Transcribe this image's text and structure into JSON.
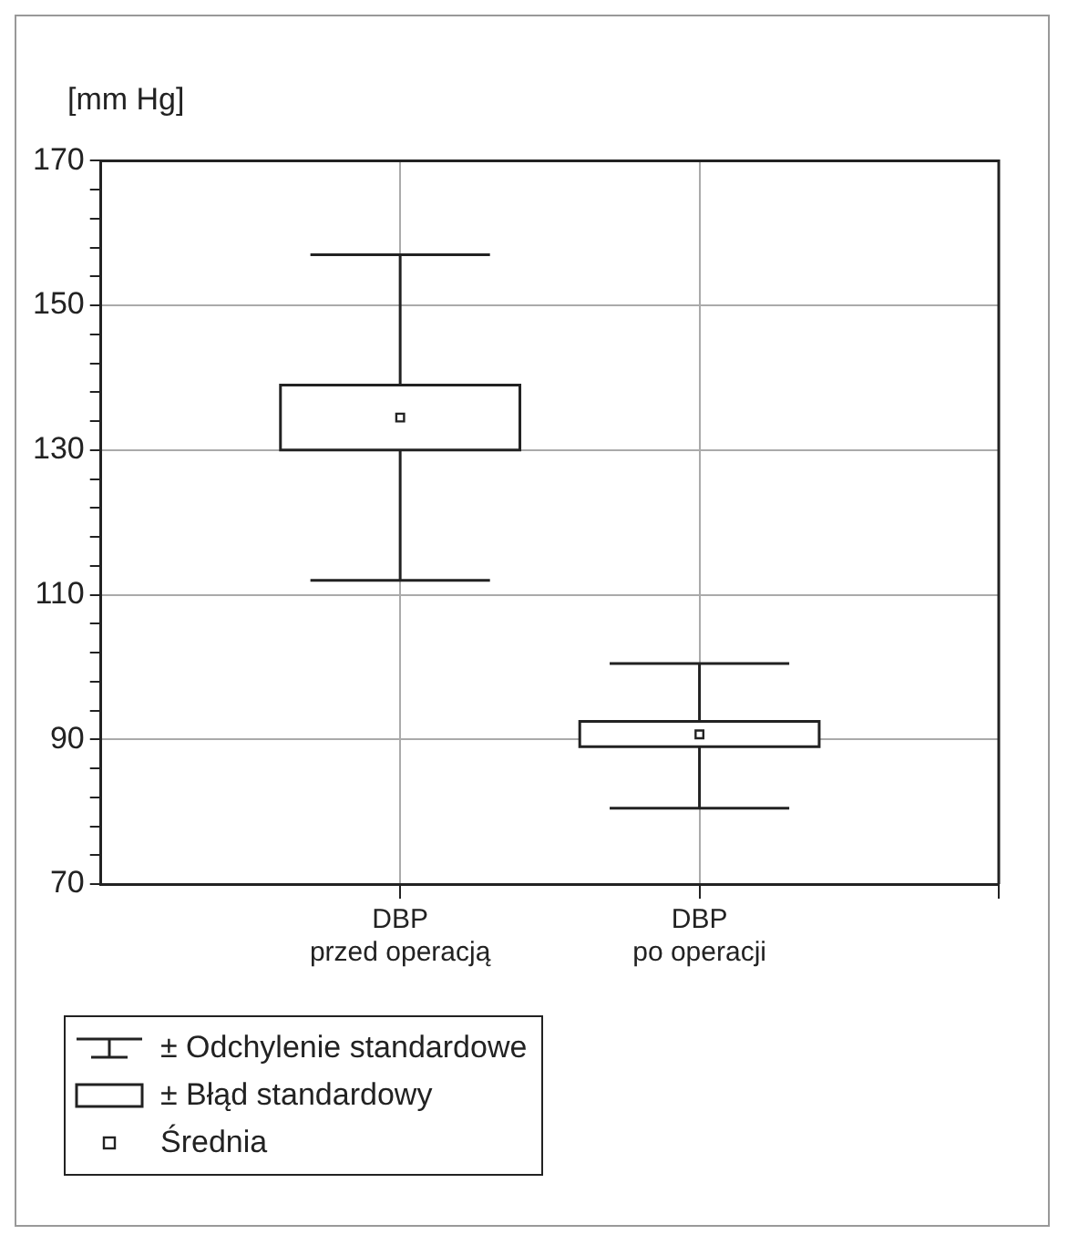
{
  "chart_data": {
    "type": "box",
    "ylabel": "[mm Hg]",
    "categories": [
      "DBP przed operacją",
      "DBP po operacji"
    ],
    "boxes": [
      {
        "low": 112,
        "q1": 130,
        "q3": 139,
        "high": 157,
        "mean": 134.5
      },
      {
        "low": 80.5,
        "q1": 89,
        "q3": 92.5,
        "high": 100.5,
        "mean": 90.7
      }
    ],
    "ylim": [
      70,
      170
    ],
    "yticks": [
      70,
      {
        "value": 74,
        "label": null
      },
      {
        "value": 78,
        "label": null
      },
      {
        "value": 82,
        "label": null
      },
      {
        "value": 86,
        "label": null
      },
      90,
      {
        "value": 94,
        "label": null
      },
      {
        "value": 98,
        "label": null
      },
      {
        "value": 102,
        "label": null
      },
      {
        "value": 106,
        "label": null
      },
      110,
      {
        "value": 114,
        "label": null
      },
      {
        "value": 118,
        "label": null
      },
      {
        "value": 122,
        "label": null
      },
      {
        "value": 126,
        "label": null
      },
      130,
      {
        "value": 134,
        "label": null
      },
      {
        "value": 138,
        "label": null
      },
      {
        "value": 142,
        "label": null
      },
      {
        "value": 146,
        "label": null
      },
      150,
      {
        "value": 154,
        "label": null
      },
      {
        "value": 158,
        "label": null
      },
      {
        "value": 162,
        "label": null
      },
      {
        "value": 166,
        "label": null
      },
      170
    ],
    "grid": true,
    "annotations": [
      "± Odchylenie standardowe",
      "± Błąd standardowy",
      "Średnia"
    ]
  }
}
